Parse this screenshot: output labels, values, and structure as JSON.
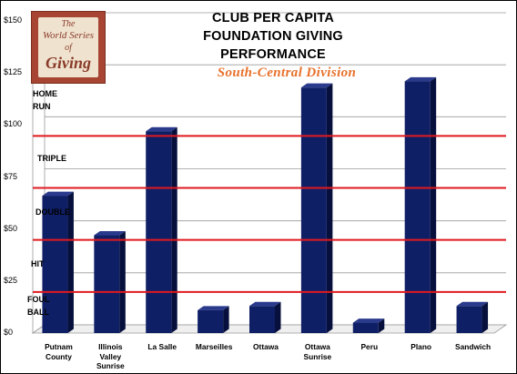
{
  "chart_data": {
    "type": "bar",
    "title_lines": [
      "CLUB PER CAPITA",
      "FOUNDATION GIVING",
      "PERFORMANCE"
    ],
    "subtitle": "South-Central  Division",
    "categories": [
      "Putnam County",
      "Illinois Valley Sunrise",
      "La Salle",
      "Marseilles",
      "Ottawa",
      "Ottawa Sunrise",
      "Peru",
      "Plano",
      "Sandwich"
    ],
    "category_lines": [
      [
        "Putnam",
        "County"
      ],
      [
        "Illinois",
        "Valley",
        "Sunrise"
      ],
      [
        "La Salle"
      ],
      [
        "Marseilles"
      ],
      [
        "Ottawa"
      ],
      [
        "Ottawa",
        "Sunrise"
      ],
      [
        "Peru"
      ],
      [
        "Plano"
      ],
      [
        "Sandwich"
      ]
    ],
    "values": [
      66,
      47,
      97,
      11,
      13,
      118,
      5,
      121,
      13
    ],
    "ylim": [
      0,
      150
    ],
    "yticks": [
      0,
      25,
      50,
      75,
      100,
      125,
      150
    ],
    "ytick_labels": [
      "$0",
      "$25",
      "$50",
      "$75",
      "$100",
      "$125",
      "$150"
    ],
    "bar_color": "#0f1f66",
    "threshold_color": "#e0191f",
    "thresholds": [
      {
        "name": "HOME RUN",
        "lines": [
          "HOME",
          "RUN"
        ],
        "value": 100
      },
      {
        "name": "TRIPLE",
        "lines": [
          "TRIPLE"
        ],
        "value": 75
      },
      {
        "name": "DOUBLE",
        "lines": [
          "DOUBLE"
        ],
        "value": 50
      },
      {
        "name": "HIT",
        "lines": [
          "HIT"
        ],
        "value": 25
      }
    ],
    "floor_zone": {
      "name": "FOUL BALL",
      "lines": [
        "FOUL",
        "BALL"
      ]
    }
  },
  "logo": {
    "lines": [
      "The",
      "World Series",
      "of",
      "Giving"
    ]
  }
}
